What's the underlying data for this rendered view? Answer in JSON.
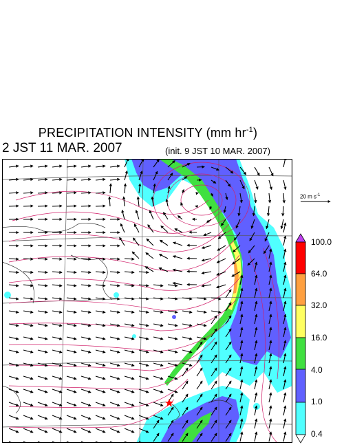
{
  "title": {
    "main": "PRECIPITATION INTENSITY (mm hr",
    "exponent": "-1",
    "close": ")"
  },
  "valid_time": "2 JST 11 MAR. 2007",
  "init_time": "(init. 9 JST 10 MAR. 2007)",
  "wind_scale": {
    "label": "20 m s",
    "exponent": "-1",
    "speed_ms": 20
  },
  "colorbar": {
    "levels": [
      "100.0",
      "64.0",
      "32.0",
      "16.0",
      "4.0",
      "1.0",
      "0.4"
    ],
    "colors": {
      "over": "#c040f0",
      "64-100": "#ff0000",
      "32-64": "#ffa040",
      "16-32": "#ffff60",
      "4-16": "#40e040",
      "1-4": "#6060ff",
      "0.4-1": "#50ffff",
      "under": "#ffffff"
    }
  },
  "map": {
    "contour_color": "#d0206a",
    "vector_color": "#000000",
    "grid_color": "#555555",
    "marker_color": "#ff0000",
    "marker_icon": "star-icon"
  }
}
